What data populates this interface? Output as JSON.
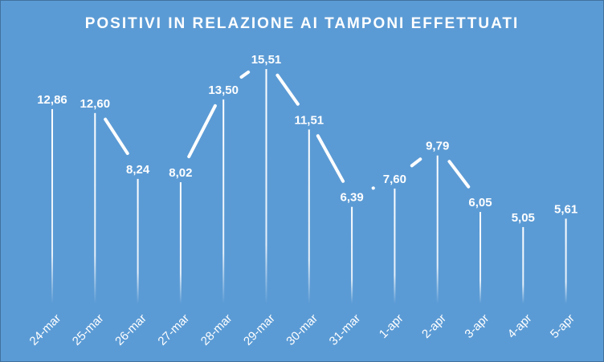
{
  "chart_data": {
    "type": "line",
    "title": "POSITIVI IN RELAZIONE AI TAMPONI EFFETTUATI",
    "categories": [
      "24-mar",
      "25-mar",
      "26-mar",
      "27-mar",
      "28-mar",
      "29-mar",
      "30-mar",
      "31-mar",
      "1-apr",
      "2-apr",
      "3-apr",
      "4-apr",
      "5-apr"
    ],
    "values": [
      12.86,
      12.6,
      8.24,
      8.02,
      13.5,
      15.51,
      11.51,
      6.39,
      7.6,
      9.79,
      6.05,
      5.05,
      5.61
    ],
    "data_labels": [
      "12,86",
      "12,60",
      "8,24",
      "8,02",
      "13,50",
      "15,51",
      "11,51",
      "6,39",
      "7,60",
      "9,79",
      "6,05",
      "5,05",
      "5,61"
    ],
    "ylim": [
      0,
      17
    ],
    "grid": false,
    "legend": "none",
    "colors": {
      "background": "#5B9BD5",
      "line": "#FFFFFF",
      "text": "#FFFFFF"
    }
  }
}
